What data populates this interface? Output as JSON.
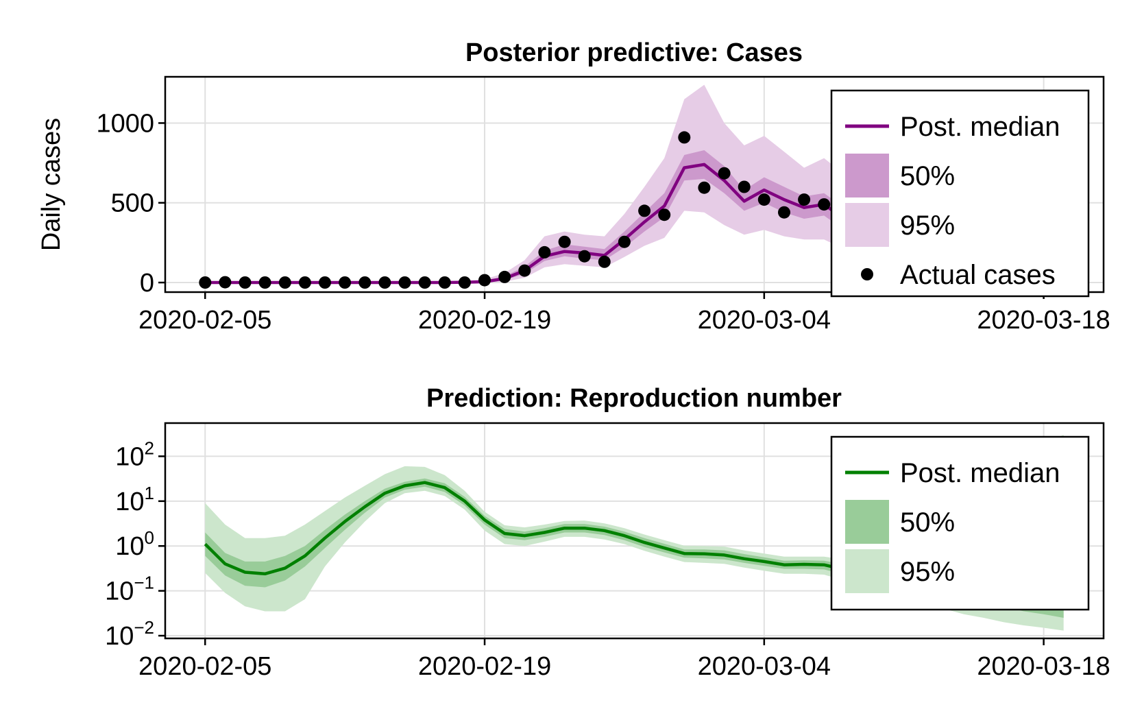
{
  "colors": {
    "cases_line": "#800080",
    "cases_50": "#cc99cc",
    "cases_95": "#e6cce6",
    "rt_line": "#008000",
    "rt_50": "#99cc99",
    "rt_95": "#cce6cc",
    "points": "#000000"
  },
  "chart_data": [
    {
      "type": "area",
      "title": "Posterior predictive: Cases",
      "xlabel": "",
      "ylabel": "Daily cases",
      "x_ticks": [
        "2020-02-05",
        "2020-02-19",
        "2020-03-04",
        "2020-03-18"
      ],
      "y_ticks": [
        {
          "v": 0,
          "label": "0"
        },
        {
          "v": 500,
          "label": "500"
        },
        {
          "v": 1000,
          "label": "1000"
        }
      ],
      "xlim": [
        "2020-02-03",
        "2020-03-21"
      ],
      "ylim": [
        -60,
        1290
      ],
      "grid": true,
      "legend_position": "top-right",
      "legend": [
        {
          "kind": "line",
          "label": "Post. median"
        },
        {
          "kind": "band50",
          "label": "50%"
        },
        {
          "kind": "band95",
          "label": "95%"
        },
        {
          "kind": "point",
          "label": "Actual cases"
        }
      ],
      "x": [
        "2020-02-05",
        "2020-02-06",
        "2020-02-07",
        "2020-02-08",
        "2020-02-09",
        "2020-02-10",
        "2020-02-11",
        "2020-02-12",
        "2020-02-13",
        "2020-02-14",
        "2020-02-15",
        "2020-02-16",
        "2020-02-17",
        "2020-02-18",
        "2020-02-19",
        "2020-02-20",
        "2020-02-21",
        "2020-02-22",
        "2020-02-23",
        "2020-02-24",
        "2020-02-25",
        "2020-02-26",
        "2020-02-27",
        "2020-02-28",
        "2020-02-29",
        "2020-03-01",
        "2020-03-02",
        "2020-03-03",
        "2020-03-04",
        "2020-03-05",
        "2020-03-06",
        "2020-03-07",
        "2020-03-08",
        "2020-03-09",
        "2020-03-10",
        "2020-03-11",
        "2020-03-12",
        "2020-03-13",
        "2020-03-14",
        "2020-03-15",
        "2020-03-16",
        "2020-03-17",
        "2020-03-18",
        "2020-03-19"
      ],
      "series": [
        {
          "name": "Post. median",
          "values": [
            0,
            0,
            0,
            0,
            0,
            0,
            0,
            0,
            0,
            0,
            0,
            0,
            0,
            2,
            5,
            25,
            75,
            165,
            195,
            185,
            170,
            270,
            380,
            480,
            720,
            740,
            640,
            510,
            580,
            520,
            470,
            490,
            400,
            320,
            300,
            280,
            240,
            210,
            180,
            160,
            140,
            120,
            110,
            100
          ]
        },
        {
          "name": "50%",
          "lower": [
            0,
            0,
            0,
            0,
            0,
            0,
            0,
            0,
            0,
            0,
            0,
            0,
            0,
            0,
            2,
            15,
            55,
            135,
            165,
            150,
            140,
            220,
            320,
            410,
            640,
            650,
            560,
            450,
            500,
            440,
            400,
            420,
            330,
            270,
            250,
            230,
            190,
            160,
            140,
            120,
            100,
            85,
            75,
            70
          ],
          "upper": [
            0,
            0,
            0,
            0,
            0,
            0,
            0,
            0,
            0,
            0,
            0,
            0,
            0,
            5,
            10,
            40,
            100,
            200,
            240,
            225,
            210,
            320,
            440,
            560,
            800,
            830,
            730,
            580,
            660,
            600,
            540,
            560,
            470,
            380,
            360,
            340,
            290,
            260,
            230,
            200,
            180,
            160,
            150,
            140
          ]
        },
        {
          "name": "95%",
          "lower": [
            0,
            0,
            0,
            0,
            0,
            0,
            0,
            0,
            0,
            0,
            0,
            0,
            0,
            0,
            0,
            5,
            30,
            95,
            115,
            105,
            95,
            160,
            230,
            280,
            450,
            440,
            360,
            300,
            330,
            290,
            270,
            270,
            210,
            170,
            150,
            130,
            110,
            90,
            80,
            70,
            60,
            50,
            40,
            35
          ],
          "upper": [
            0,
            0,
            0,
            0,
            0,
            0,
            0,
            0,
            0,
            0,
            0,
            0,
            0,
            10,
            20,
            60,
            140,
            290,
            320,
            300,
            290,
            430,
            600,
            780,
            1150,
            1240,
            1000,
            860,
            920,
            820,
            720,
            780,
            680,
            560,
            520,
            480,
            420,
            380,
            340,
            300,
            280,
            260,
            240,
            220
          ]
        },
        {
          "name": "Actual cases",
          "x": [
            "2020-02-05",
            "2020-02-06",
            "2020-02-07",
            "2020-02-08",
            "2020-02-09",
            "2020-02-10",
            "2020-02-11",
            "2020-02-12",
            "2020-02-13",
            "2020-02-14",
            "2020-02-15",
            "2020-02-16",
            "2020-02-17",
            "2020-02-18",
            "2020-02-19",
            "2020-02-20",
            "2020-02-21",
            "2020-02-22",
            "2020-02-23",
            "2020-02-24",
            "2020-02-25",
            "2020-02-26",
            "2020-02-27",
            "2020-02-28",
            "2020-02-29",
            "2020-03-01",
            "2020-03-02",
            "2020-03-03",
            "2020-03-04",
            "2020-03-05",
            "2020-03-06",
            "2020-03-07",
            "2020-03-08",
            "2020-03-09",
            "2020-03-10"
          ],
          "values": [
            0,
            2,
            0,
            0,
            0,
            0,
            0,
            0,
            0,
            0,
            0,
            0,
            0,
            0,
            15,
            35,
            75,
            190,
            255,
            165,
            130,
            255,
            450,
            425,
            910,
            595,
            685,
            600,
            520,
            440,
            520,
            490,
            410,
            360,
            330
          ]
        }
      ]
    },
    {
      "type": "area",
      "title": "Prediction: Reproduction number",
      "xlabel": "",
      "ylabel": "",
      "y_scale": "log",
      "x_ticks": [
        "2020-02-05",
        "2020-02-19",
        "2020-03-04",
        "2020-03-18"
      ],
      "y_ticks": [
        {
          "v": 0.01,
          "base": "10",
          "exp": "−2"
        },
        {
          "v": 0.1,
          "base": "10",
          "exp": "−1"
        },
        {
          "v": 1,
          "base": "10",
          "exp": "0"
        },
        {
          "v": 10,
          "base": "10",
          "exp": "1"
        },
        {
          "v": 100,
          "base": "10",
          "exp": "2"
        }
      ],
      "xlim": [
        "2020-02-03",
        "2020-03-21"
      ],
      "ylim": [
        0.0087,
        550
      ],
      "grid": true,
      "legend_position": "top-right",
      "legend": [
        {
          "kind": "line",
          "label": "Post. median"
        },
        {
          "kind": "band50",
          "label": "50%"
        },
        {
          "kind": "band95",
          "label": "95%"
        }
      ],
      "x": [
        "2020-02-05",
        "2020-02-06",
        "2020-02-07",
        "2020-02-08",
        "2020-02-09",
        "2020-02-10",
        "2020-02-11",
        "2020-02-12",
        "2020-02-13",
        "2020-02-14",
        "2020-02-15",
        "2020-02-16",
        "2020-02-17",
        "2020-02-18",
        "2020-02-19",
        "2020-02-20",
        "2020-02-21",
        "2020-02-22",
        "2020-02-23",
        "2020-02-24",
        "2020-02-25",
        "2020-02-26",
        "2020-02-27",
        "2020-02-28",
        "2020-02-29",
        "2020-03-01",
        "2020-03-02",
        "2020-03-03",
        "2020-03-04",
        "2020-03-05",
        "2020-03-06",
        "2020-03-07",
        "2020-03-08",
        "2020-03-09",
        "2020-03-10",
        "2020-03-11",
        "2020-03-12",
        "2020-03-13",
        "2020-03-14",
        "2020-03-15",
        "2020-03-16",
        "2020-03-17",
        "2020-03-18",
        "2020-03-19"
      ],
      "series": [
        {
          "name": "Post. median",
          "values": [
            1.1,
            0.4,
            0.26,
            0.24,
            0.32,
            0.6,
            1.5,
            3.5,
            7.5,
            15,
            22,
            26,
            20,
            10,
            3.8,
            1.9,
            1.7,
            2.0,
            2.5,
            2.5,
            2.2,
            1.7,
            1.2,
            0.9,
            0.68,
            0.67,
            0.63,
            0.52,
            0.45,
            0.38,
            0.39,
            0.38,
            0.3,
            0.24,
            0.21,
            0.19,
            0.17,
            0.15,
            0.13,
            0.11,
            0.09,
            0.08,
            0.07,
            0.06
          ]
        },
        {
          "name": "50%",
          "lower": [
            0.6,
            0.22,
            0.13,
            0.12,
            0.17,
            0.35,
            0.9,
            2.3,
            5.5,
            12,
            18,
            21,
            16,
            8,
            3.0,
            1.5,
            1.35,
            1.6,
            2.0,
            2.0,
            1.75,
            1.35,
            0.95,
            0.72,
            0.55,
            0.53,
            0.5,
            0.42,
            0.36,
            0.31,
            0.31,
            0.3,
            0.23,
            0.18,
            0.15,
            0.13,
            0.11,
            0.09,
            0.07,
            0.055,
            0.045,
            0.035,
            0.03,
            0.025
          ],
          "upper": [
            2.0,
            0.7,
            0.45,
            0.45,
            0.6,
            1.0,
            2.3,
            5.0,
            10,
            19,
            27,
            32,
            25,
            12.5,
            4.7,
            2.4,
            2.1,
            2.5,
            3.1,
            3.1,
            2.7,
            2.1,
            1.5,
            1.12,
            0.84,
            0.84,
            0.8,
            0.66,
            0.56,
            0.47,
            0.48,
            0.47,
            0.39,
            0.32,
            0.28,
            0.26,
            0.25,
            0.23,
            0.21,
            0.19,
            0.17,
            0.15,
            0.13,
            0.12
          ]
        },
        {
          "name": "95%",
          "lower": [
            0.25,
            0.09,
            0.045,
            0.035,
            0.035,
            0.065,
            0.35,
            1.2,
            3.5,
            9,
            15,
            17,
            13,
            6.5,
            2.2,
            1.1,
            1.0,
            1.25,
            1.6,
            1.6,
            1.4,
            1.1,
            0.78,
            0.58,
            0.44,
            0.42,
            0.4,
            0.33,
            0.28,
            0.24,
            0.24,
            0.23,
            0.17,
            0.12,
            0.09,
            0.07,
            0.05,
            0.04,
            0.03,
            0.025,
            0.02,
            0.017,
            0.015,
            0.013
          ],
          "upper": [
            9,
            3,
            1.5,
            1.5,
            1.7,
            3.0,
            6.0,
            12,
            22,
            40,
            60,
            58,
            38,
            17,
            5.8,
            2.9,
            2.6,
            3.0,
            3.6,
            3.7,
            3.2,
            2.5,
            1.8,
            1.35,
            1.02,
            1.0,
            0.97,
            0.8,
            0.68,
            0.58,
            0.58,
            0.58,
            0.5,
            0.45,
            0.45,
            0.6,
            1.0,
            2.0,
            5,
            12,
            30,
            80,
            200,
            300
          ]
        }
      ]
    }
  ]
}
